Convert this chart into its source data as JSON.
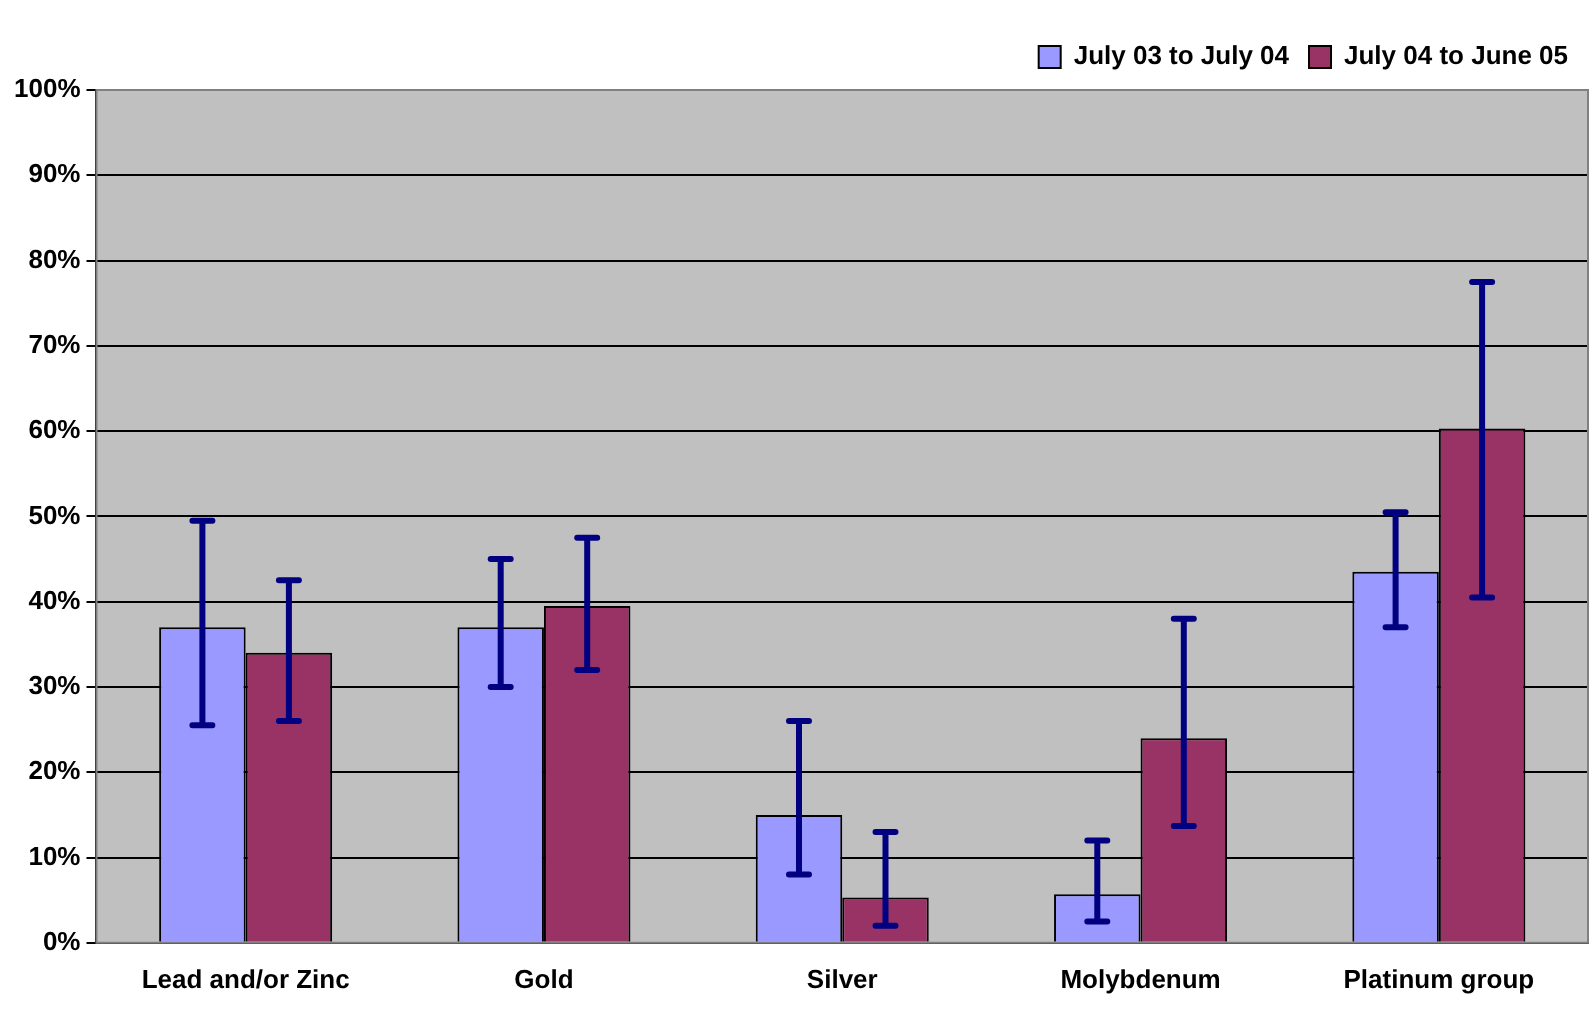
{
  "chart_data": {
    "type": "bar",
    "categories": [
      "Lead and/or Zinc",
      "Gold",
      "Silver",
      "Molybdenum",
      "Platinum group"
    ],
    "series": [
      {
        "name": "July 03 to July 04",
        "color": "#9999ff",
        "values": [
          37,
          37,
          15,
          5.7,
          43.5
        ],
        "errors": [
          [
            25.5,
            49.5
          ],
          [
            30,
            45
          ],
          [
            8,
            26
          ],
          [
            2.5,
            12
          ],
          [
            37,
            50.5
          ]
        ]
      },
      {
        "name": "July 04 to June 05",
        "color": "#993366",
        "values": [
          34,
          39.5,
          5.3,
          24,
          60.3
        ],
        "errors": [
          [
            26,
            42.5
          ],
          [
            32,
            47.5
          ],
          [
            2,
            13
          ],
          [
            13.7,
            38
          ],
          [
            40.5,
            77.5
          ]
        ]
      }
    ],
    "ylim": [
      0,
      100
    ],
    "yticks": [
      {
        "value": 0,
        "label": "0%"
      },
      {
        "value": 10,
        "label": "10%"
      },
      {
        "value": 20,
        "label": "20%"
      },
      {
        "value": 30,
        "label": "30%"
      },
      {
        "value": 40,
        "label": "40%"
      },
      {
        "value": 50,
        "label": "50%"
      },
      {
        "value": 60,
        "label": "60%"
      },
      {
        "value": 70,
        "label": "70%"
      },
      {
        "value": 80,
        "label": "80%"
      },
      {
        "value": 90,
        "label": "90%"
      },
      {
        "value": 100,
        "label": "100%"
      }
    ],
    "grid": "y",
    "legend": "top right"
  }
}
